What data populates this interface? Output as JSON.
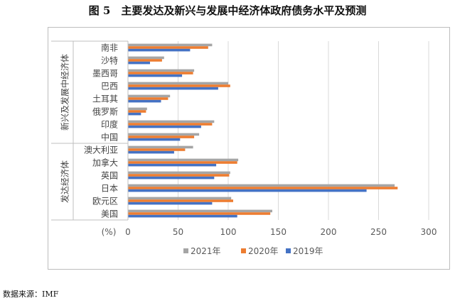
{
  "figure": {
    "title": "图 5　主要发达及新兴与发展中经济体政府债务水平及预测",
    "source": "数据来源：IMF"
  },
  "chart_data": {
    "type": "bar",
    "orientation": "horizontal",
    "categories": [
      "南非",
      "沙特",
      "墨西哥",
      "巴西",
      "土耳其",
      "俄罗斯",
      "印度",
      "中国",
      "澳大利亚",
      "加拿大",
      "英国",
      "日本",
      "欧元区",
      "美国"
    ],
    "groups": [
      {
        "label": "新兴及发展中经济体",
        "categories": [
          "南非",
          "沙特",
          "墨西哥",
          "巴西",
          "土耳其",
          "俄罗斯",
          "印度",
          "中国"
        ]
      },
      {
        "label": "发达经济体",
        "categories": [
          "澳大利亚",
          "加拿大",
          "英国",
          "日本",
          "欧元区",
          "美国"
        ]
      }
    ],
    "series": [
      {
        "name": "2021年",
        "color": "#a5a5a5",
        "values": [
          84,
          36,
          66,
          100,
          42,
          19,
          86,
          71,
          65,
          110,
          102,
          266,
          103,
          144
        ]
      },
      {
        "name": "2020年",
        "color": "#ed7d31",
        "values": [
          80,
          34,
          65,
          102,
          40,
          18,
          84,
          66,
          57,
          109,
          101,
          269,
          105,
          142
        ]
      },
      {
        "name": "2019年",
        "color": "#4472c4",
        "values": [
          62,
          22,
          54,
          90,
          33,
          13,
          73,
          52,
          46,
          88,
          86,
          238,
          84,
          109
        ]
      }
    ],
    "xlim": [
      0,
      300
    ],
    "xticks": [
      "0",
      "50",
      "100",
      "150",
      "200",
      "250",
      "300"
    ],
    "x_unit_label": "(%)",
    "grid": true,
    "legend_position": "bottom"
  }
}
